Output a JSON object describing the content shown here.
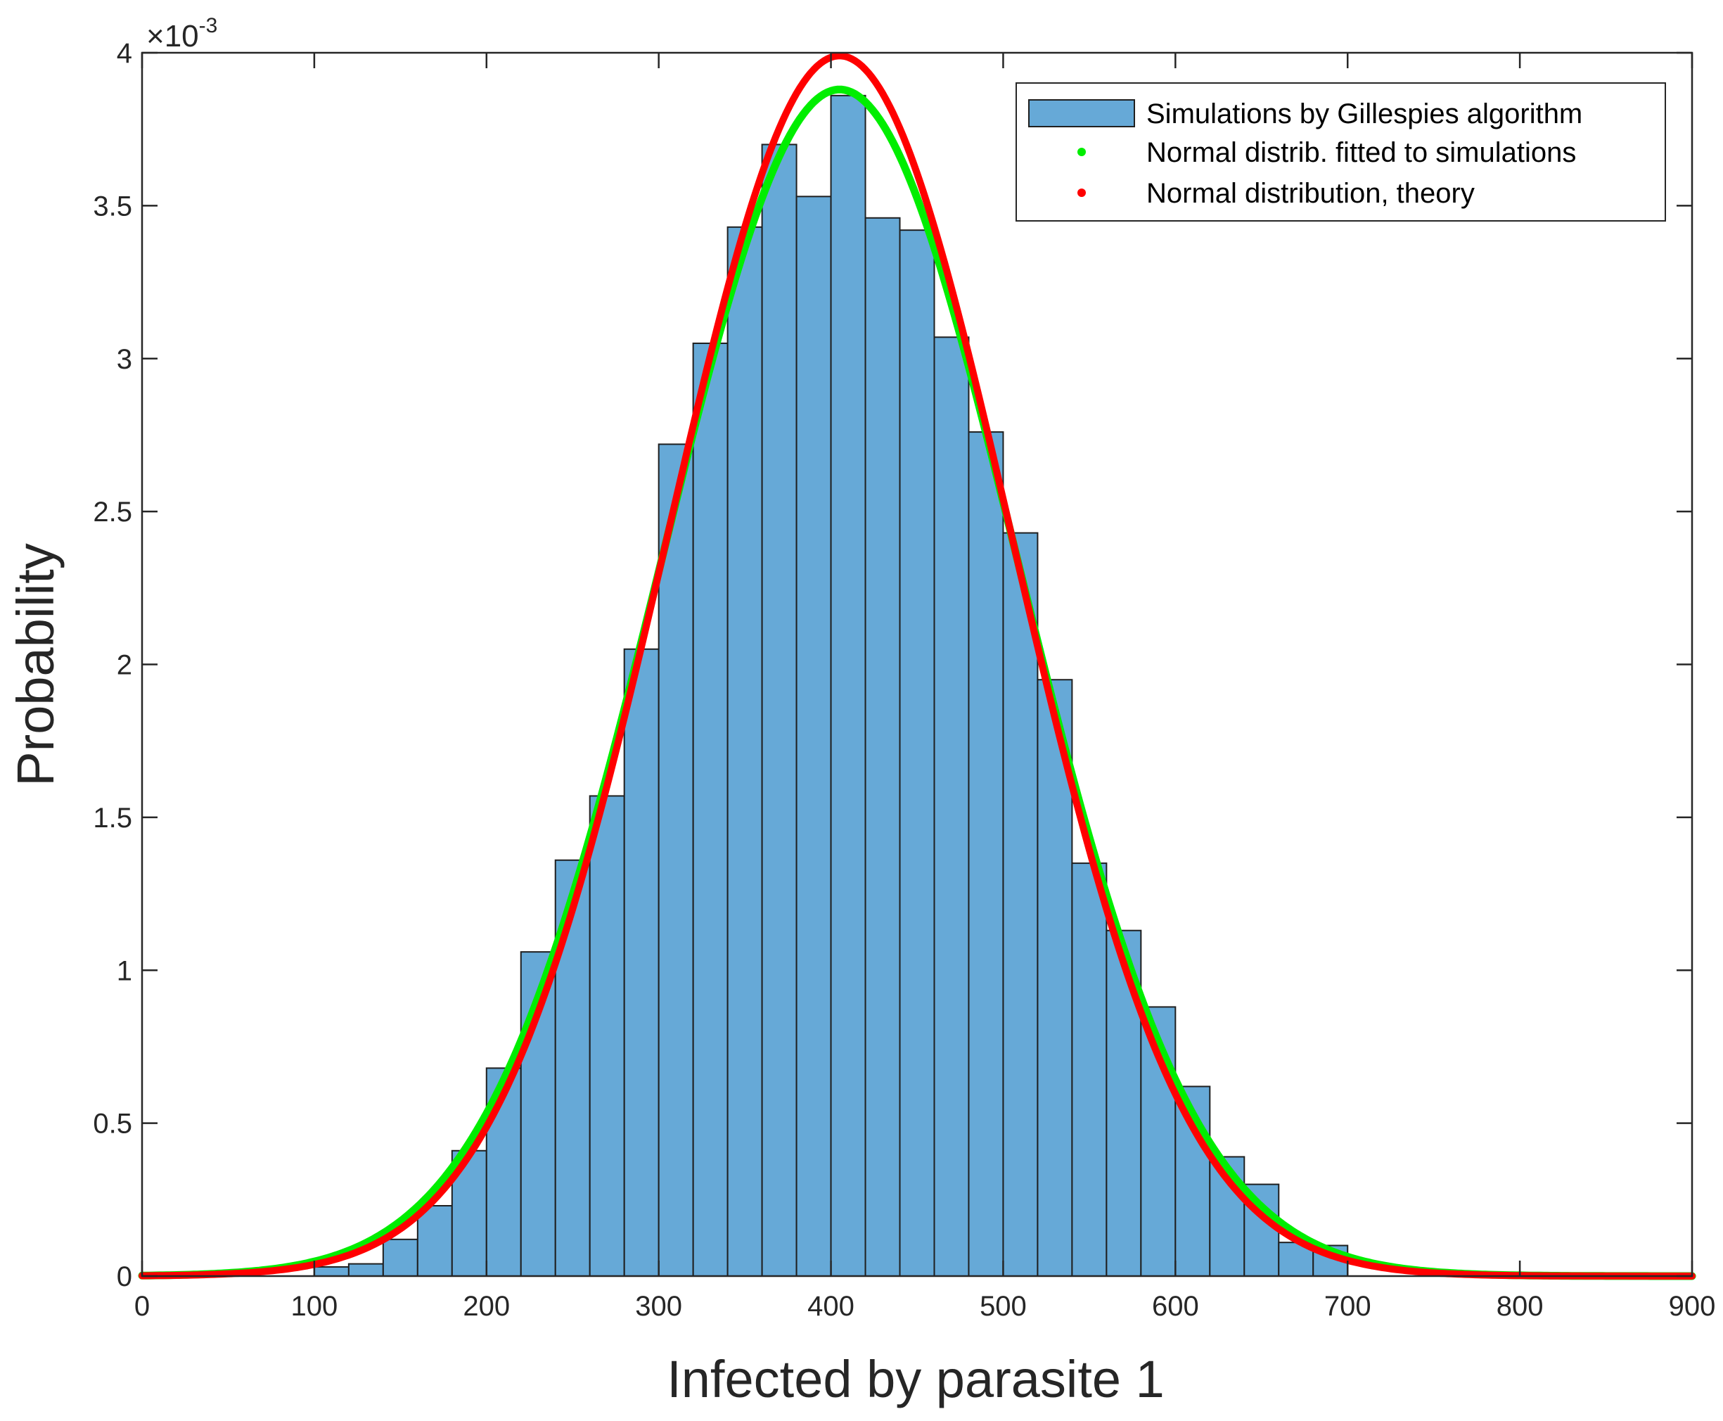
{
  "chart_data": {
    "type": "bar",
    "title": "",
    "xlabel": "Infected by parasite 1",
    "ylabel": "Probability",
    "xlim": [
      0,
      900
    ],
    "ylim": [
      0,
      0.004
    ],
    "y_exponent_label": {
      "base": "×10",
      "power": "-3"
    },
    "xticks": [
      0,
      100,
      200,
      300,
      400,
      500,
      600,
      700,
      800,
      900
    ],
    "yticks": [
      0,
      0.5,
      1,
      1.5,
      2,
      2.5,
      3,
      3.5,
      4
    ],
    "ytick_labels": [
      "0",
      "0.5",
      "1",
      "1.5",
      "2",
      "2.5",
      "3",
      "3.5",
      "4"
    ],
    "histogram": {
      "name": "Simulations by Gillespies algorithm",
      "bin_edges": [
        100,
        120,
        140,
        160,
        180,
        200,
        220,
        240,
        260,
        280,
        300,
        320,
        340,
        360,
        380,
        400,
        420,
        440,
        460,
        480,
        500,
        520,
        540,
        560,
        580,
        600,
        620,
        640,
        660,
        680,
        700
      ],
      "values": [
        3e-05,
        4e-05,
        0.00012,
        0.00023,
        0.00041,
        0.00068,
        0.00106,
        0.00136,
        0.00157,
        0.00205,
        0.00272,
        0.00305,
        0.00343,
        0.0037,
        0.00353,
        0.00386,
        0.00346,
        0.00342,
        0.00307,
        0.00276,
        0.00243,
        0.00195,
        0.00135,
        0.00113,
        0.00088,
        0.00062,
        0.00039,
        0.0003,
        0.00011,
        0.0001
      ],
      "color": "#66a9d7",
      "edge_color": "#1f1f1f"
    },
    "curves": [
      {
        "name": "Normal distrib. fitted to simulations",
        "mean": 405,
        "peak": 0.00388,
        "color": "#00ee00"
      },
      {
        "name": "Normal distribution, theory",
        "mean": 405,
        "peak": 0.00399,
        "color": "#ff0000"
      }
    ],
    "legend_position": "top-right",
    "grid": false
  }
}
